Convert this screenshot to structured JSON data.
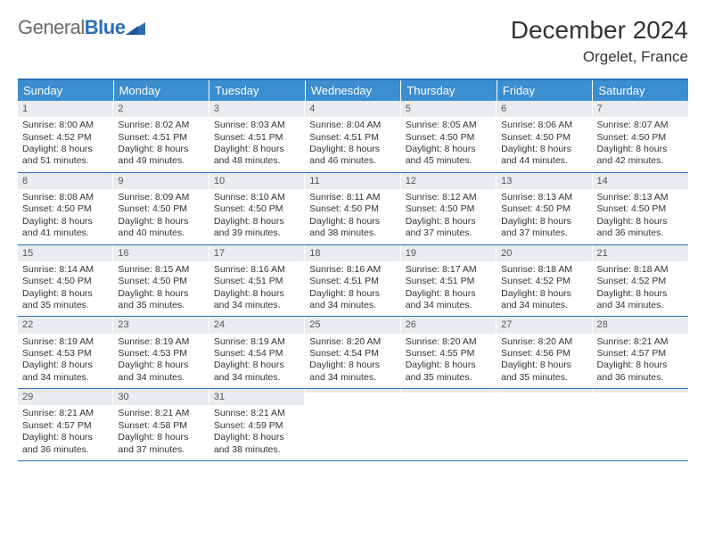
{
  "brand": {
    "part1": "General",
    "part2": "Blue"
  },
  "title": "December 2024",
  "location": "Orgelet, France",
  "colors": {
    "header_bg": "#3b8ed0",
    "header_text": "#ffffff",
    "border": "#2a6fb5",
    "daynum_bg": "#e9ecef",
    "body_text": "#333333",
    "page_bg": "#ffffff"
  },
  "fonts": {
    "title_pt": 28,
    "location_pt": 17,
    "header_pt": 13,
    "cell_pt": 10.5
  },
  "day_headers": [
    "Sunday",
    "Monday",
    "Tuesday",
    "Wednesday",
    "Thursday",
    "Friday",
    "Saturday"
  ],
  "weeks": [
    [
      {
        "n": "1",
        "sr": "Sunrise: 8:00 AM",
        "ss": "Sunset: 4:52 PM",
        "d1": "Daylight: 8 hours",
        "d2": "and 51 minutes."
      },
      {
        "n": "2",
        "sr": "Sunrise: 8:02 AM",
        "ss": "Sunset: 4:51 PM",
        "d1": "Daylight: 8 hours",
        "d2": "and 49 minutes."
      },
      {
        "n": "3",
        "sr": "Sunrise: 8:03 AM",
        "ss": "Sunset: 4:51 PM",
        "d1": "Daylight: 8 hours",
        "d2": "and 48 minutes."
      },
      {
        "n": "4",
        "sr": "Sunrise: 8:04 AM",
        "ss": "Sunset: 4:51 PM",
        "d1": "Daylight: 8 hours",
        "d2": "and 46 minutes."
      },
      {
        "n": "5",
        "sr": "Sunrise: 8:05 AM",
        "ss": "Sunset: 4:50 PM",
        "d1": "Daylight: 8 hours",
        "d2": "and 45 minutes."
      },
      {
        "n": "6",
        "sr": "Sunrise: 8:06 AM",
        "ss": "Sunset: 4:50 PM",
        "d1": "Daylight: 8 hours",
        "d2": "and 44 minutes."
      },
      {
        "n": "7",
        "sr": "Sunrise: 8:07 AM",
        "ss": "Sunset: 4:50 PM",
        "d1": "Daylight: 8 hours",
        "d2": "and 42 minutes."
      }
    ],
    [
      {
        "n": "8",
        "sr": "Sunrise: 8:08 AM",
        "ss": "Sunset: 4:50 PM",
        "d1": "Daylight: 8 hours",
        "d2": "and 41 minutes."
      },
      {
        "n": "9",
        "sr": "Sunrise: 8:09 AM",
        "ss": "Sunset: 4:50 PM",
        "d1": "Daylight: 8 hours",
        "d2": "and 40 minutes."
      },
      {
        "n": "10",
        "sr": "Sunrise: 8:10 AM",
        "ss": "Sunset: 4:50 PM",
        "d1": "Daylight: 8 hours",
        "d2": "and 39 minutes."
      },
      {
        "n": "11",
        "sr": "Sunrise: 8:11 AM",
        "ss": "Sunset: 4:50 PM",
        "d1": "Daylight: 8 hours",
        "d2": "and 38 minutes."
      },
      {
        "n": "12",
        "sr": "Sunrise: 8:12 AM",
        "ss": "Sunset: 4:50 PM",
        "d1": "Daylight: 8 hours",
        "d2": "and 37 minutes."
      },
      {
        "n": "13",
        "sr": "Sunrise: 8:13 AM",
        "ss": "Sunset: 4:50 PM",
        "d1": "Daylight: 8 hours",
        "d2": "and 37 minutes."
      },
      {
        "n": "14",
        "sr": "Sunrise: 8:13 AM",
        "ss": "Sunset: 4:50 PM",
        "d1": "Daylight: 8 hours",
        "d2": "and 36 minutes."
      }
    ],
    [
      {
        "n": "15",
        "sr": "Sunrise: 8:14 AM",
        "ss": "Sunset: 4:50 PM",
        "d1": "Daylight: 8 hours",
        "d2": "and 35 minutes."
      },
      {
        "n": "16",
        "sr": "Sunrise: 8:15 AM",
        "ss": "Sunset: 4:50 PM",
        "d1": "Daylight: 8 hours",
        "d2": "and 35 minutes."
      },
      {
        "n": "17",
        "sr": "Sunrise: 8:16 AM",
        "ss": "Sunset: 4:51 PM",
        "d1": "Daylight: 8 hours",
        "d2": "and 34 minutes."
      },
      {
        "n": "18",
        "sr": "Sunrise: 8:16 AM",
        "ss": "Sunset: 4:51 PM",
        "d1": "Daylight: 8 hours",
        "d2": "and 34 minutes."
      },
      {
        "n": "19",
        "sr": "Sunrise: 8:17 AM",
        "ss": "Sunset: 4:51 PM",
        "d1": "Daylight: 8 hours",
        "d2": "and 34 minutes."
      },
      {
        "n": "20",
        "sr": "Sunrise: 8:18 AM",
        "ss": "Sunset: 4:52 PM",
        "d1": "Daylight: 8 hours",
        "d2": "and 34 minutes."
      },
      {
        "n": "21",
        "sr": "Sunrise: 8:18 AM",
        "ss": "Sunset: 4:52 PM",
        "d1": "Daylight: 8 hours",
        "d2": "and 34 minutes."
      }
    ],
    [
      {
        "n": "22",
        "sr": "Sunrise: 8:19 AM",
        "ss": "Sunset: 4:53 PM",
        "d1": "Daylight: 8 hours",
        "d2": "and 34 minutes."
      },
      {
        "n": "23",
        "sr": "Sunrise: 8:19 AM",
        "ss": "Sunset: 4:53 PM",
        "d1": "Daylight: 8 hours",
        "d2": "and 34 minutes."
      },
      {
        "n": "24",
        "sr": "Sunrise: 8:19 AM",
        "ss": "Sunset: 4:54 PM",
        "d1": "Daylight: 8 hours",
        "d2": "and 34 minutes."
      },
      {
        "n": "25",
        "sr": "Sunrise: 8:20 AM",
        "ss": "Sunset: 4:54 PM",
        "d1": "Daylight: 8 hours",
        "d2": "and 34 minutes."
      },
      {
        "n": "26",
        "sr": "Sunrise: 8:20 AM",
        "ss": "Sunset: 4:55 PM",
        "d1": "Daylight: 8 hours",
        "d2": "and 35 minutes."
      },
      {
        "n": "27",
        "sr": "Sunrise: 8:20 AM",
        "ss": "Sunset: 4:56 PM",
        "d1": "Daylight: 8 hours",
        "d2": "and 35 minutes."
      },
      {
        "n": "28",
        "sr": "Sunrise: 8:21 AM",
        "ss": "Sunset: 4:57 PM",
        "d1": "Daylight: 8 hours",
        "d2": "and 36 minutes."
      }
    ],
    [
      {
        "n": "29",
        "sr": "Sunrise: 8:21 AM",
        "ss": "Sunset: 4:57 PM",
        "d1": "Daylight: 8 hours",
        "d2": "and 36 minutes."
      },
      {
        "n": "30",
        "sr": "Sunrise: 8:21 AM",
        "ss": "Sunset: 4:58 PM",
        "d1": "Daylight: 8 hours",
        "d2": "and 37 minutes."
      },
      {
        "n": "31",
        "sr": "Sunrise: 8:21 AM",
        "ss": "Sunset: 4:59 PM",
        "d1": "Daylight: 8 hours",
        "d2": "and 38 minutes."
      },
      {
        "n": "",
        "sr": "",
        "ss": "",
        "d1": "",
        "d2": "",
        "empty": true
      },
      {
        "n": "",
        "sr": "",
        "ss": "",
        "d1": "",
        "d2": "",
        "empty": true
      },
      {
        "n": "",
        "sr": "",
        "ss": "",
        "d1": "",
        "d2": "",
        "empty": true
      },
      {
        "n": "",
        "sr": "",
        "ss": "",
        "d1": "",
        "d2": "",
        "empty": true
      }
    ]
  ]
}
